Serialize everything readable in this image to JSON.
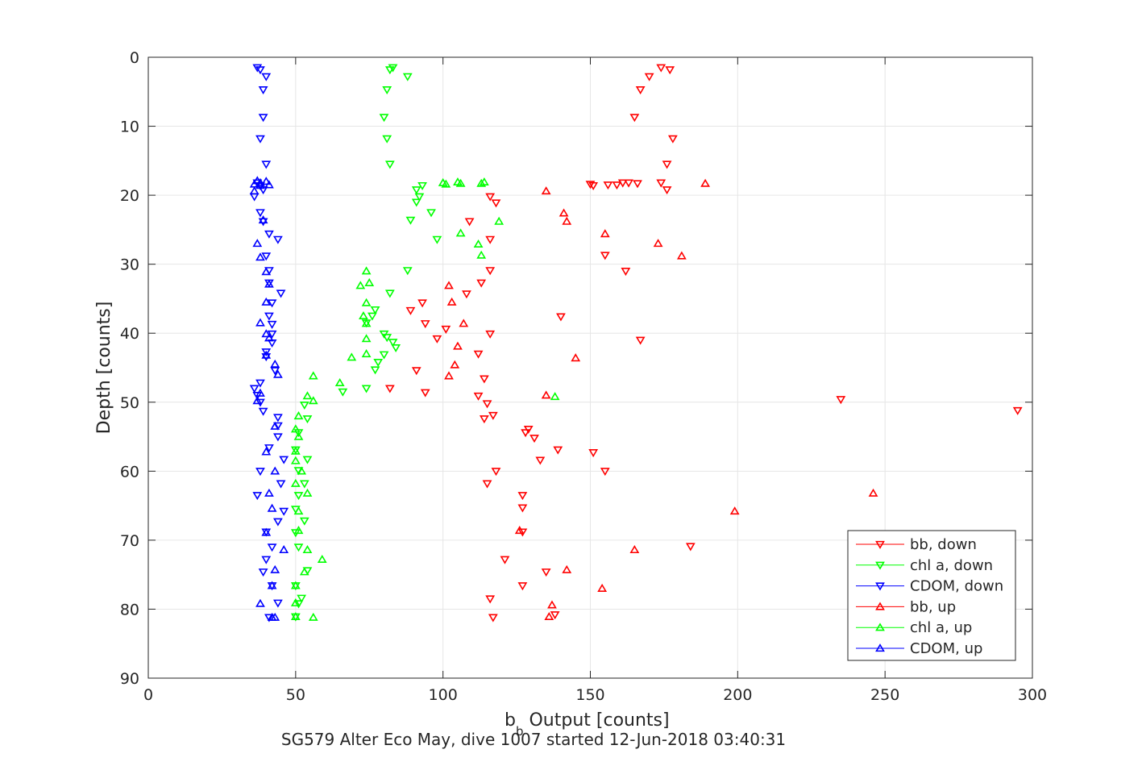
{
  "chart_data": {
    "type": "scatter",
    "xlabel": "b",
    "xlabel_sub": "b",
    "xlabel_rest": " Output [counts]",
    "ylabel": "Depth [counts]",
    "caption": "SG579 Alter Eco May, dive 1007 started 12-Jun-2018 03:40:31",
    "xlim": [
      0,
      300
    ],
    "ylim": [
      0,
      90
    ],
    "y_reversed": true,
    "grid": true,
    "legend_position": "bottom-right",
    "x_ticks": [
      "0",
      "50",
      "100",
      "150",
      "200",
      "250",
      "300"
    ],
    "y_ticks": [
      "0",
      "10",
      "20",
      "30",
      "40",
      "50",
      "60",
      "70",
      "80",
      "90"
    ],
    "series": [
      {
        "name": "bb, down",
        "color": "#ff0000",
        "marker": "triangle-down",
        "points": [
          [
            174,
            1.5
          ],
          [
            177,
            1.8
          ],
          [
            170,
            2.8
          ],
          [
            167,
            4.7
          ],
          [
            165,
            8.7
          ],
          [
            178,
            11.8
          ],
          [
            176,
            15.5
          ],
          [
            174,
            18.2
          ],
          [
            176,
            19.2
          ],
          [
            150,
            18.4
          ],
          [
            151,
            18.6
          ],
          [
            156,
            18.5
          ],
          [
            159,
            18.5
          ],
          [
            161,
            18.2
          ],
          [
            163,
            18.2
          ],
          [
            166,
            18.3
          ],
          [
            116,
            20.2
          ],
          [
            118,
            21.1
          ],
          [
            109,
            23.8
          ],
          [
            116,
            26.4
          ],
          [
            155,
            28.7
          ],
          [
            162,
            31
          ],
          [
            116,
            30.9
          ],
          [
            113,
            32.7
          ],
          [
            108,
            34.3
          ],
          [
            89,
            36.7
          ],
          [
            93,
            35.6
          ],
          [
            140,
            37.6
          ],
          [
            94,
            38.6
          ],
          [
            101,
            39.4
          ],
          [
            116,
            40.1
          ],
          [
            167,
            41
          ],
          [
            98,
            40.8
          ],
          [
            112,
            43
          ],
          [
            91,
            45.4
          ],
          [
            114,
            46.6
          ],
          [
            82,
            48
          ],
          [
            94,
            48.6
          ],
          [
            112,
            49.1
          ],
          [
            115,
            50.2
          ],
          [
            235,
            49.6
          ],
          [
            295,
            51.2
          ],
          [
            114,
            52.4
          ],
          [
            117,
            51.9
          ],
          [
            129,
            53.9
          ],
          [
            128,
            54.4
          ],
          [
            131,
            55.2
          ],
          [
            139,
            56.9
          ],
          [
            133,
            58.4
          ],
          [
            118,
            60
          ],
          [
            115,
            61.8
          ],
          [
            155,
            60
          ],
          [
            151,
            57.3
          ],
          [
            127,
            63.5
          ],
          [
            127,
            65.3
          ],
          [
            127,
            68.8
          ],
          [
            184,
            70.9
          ],
          [
            121,
            72.8
          ],
          [
            135,
            74.6
          ],
          [
            127,
            76.6
          ],
          [
            116,
            78.5
          ],
          [
            117,
            81.2
          ],
          [
            138,
            80.8
          ]
        ]
      },
      {
        "name": "chl a, down",
        "color": "#00ff00",
        "marker": "triangle-down",
        "points": [
          [
            83,
            1.5
          ],
          [
            82,
            1.8
          ],
          [
            88,
            2.8
          ],
          [
            81,
            4.7
          ],
          [
            80,
            8.7
          ],
          [
            81,
            11.8
          ],
          [
            82,
            15.5
          ],
          [
            93,
            18.6
          ],
          [
            91,
            19.2
          ],
          [
            92,
            20.2
          ],
          [
            91,
            21
          ],
          [
            96,
            22.5
          ],
          [
            89,
            23.6
          ],
          [
            98,
            26.4
          ],
          [
            88,
            30.9
          ],
          [
            82,
            34.2
          ],
          [
            77,
            36.6
          ],
          [
            76,
            37.5
          ],
          [
            74,
            38.5
          ],
          [
            80,
            40.1
          ],
          [
            81,
            40.6
          ],
          [
            83,
            41.3
          ],
          [
            84,
            42.1
          ],
          [
            80,
            43.1
          ],
          [
            78,
            44.2
          ],
          [
            77,
            45.3
          ],
          [
            74,
            48
          ],
          [
            66,
            48.5
          ],
          [
            53,
            50.4
          ],
          [
            54,
            52.4
          ],
          [
            51,
            54.4
          ],
          [
            50,
            56.9
          ],
          [
            54,
            58.3
          ],
          [
            51,
            59.9
          ],
          [
            53,
            61.8
          ],
          [
            51,
            63.5
          ],
          [
            50,
            65.5
          ],
          [
            53,
            67.2
          ],
          [
            50,
            68.9
          ],
          [
            51,
            71
          ],
          [
            54,
            74.4
          ],
          [
            50,
            76.6
          ],
          [
            52,
            78.4
          ],
          [
            51,
            79.2
          ],
          [
            50,
            81.1
          ]
        ]
      },
      {
        "name": "CDOM, down",
        "color": "#0000ff",
        "marker": "triangle-down",
        "points": [
          [
            37,
            1.5
          ],
          [
            38,
            1.8
          ],
          [
            40,
            2.8
          ],
          [
            39,
            4.7
          ],
          [
            39,
            8.7
          ],
          [
            38,
            11.8
          ],
          [
            40,
            15.5
          ],
          [
            37,
            18.2
          ],
          [
            38,
            18.6
          ],
          [
            39,
            19.2
          ],
          [
            36,
            20.2
          ],
          [
            38,
            22.5
          ],
          [
            39,
            23.8
          ],
          [
            41,
            25.6
          ],
          [
            44,
            26.4
          ],
          [
            40,
            28.8
          ],
          [
            41,
            30.9
          ],
          [
            41,
            32.7
          ],
          [
            45,
            34.2
          ],
          [
            42,
            35.6
          ],
          [
            41,
            37.5
          ],
          [
            42,
            38.7
          ],
          [
            42,
            40.1
          ],
          [
            42,
            41.4
          ],
          [
            40,
            42.7
          ],
          [
            40,
            43.4
          ],
          [
            43,
            45.4
          ],
          [
            38,
            47.2
          ],
          [
            36,
            48
          ],
          [
            37,
            49
          ],
          [
            38,
            50
          ],
          [
            39,
            51.3
          ],
          [
            44,
            52.2
          ],
          [
            44,
            53.4
          ],
          [
            44,
            55
          ],
          [
            41,
            56.6
          ],
          [
            46,
            58.3
          ],
          [
            38,
            60
          ],
          [
            45,
            61.8
          ],
          [
            37,
            63.5
          ],
          [
            46,
            65.8
          ],
          [
            44,
            67.3
          ],
          [
            40,
            68.8
          ],
          [
            42,
            71
          ],
          [
            40,
            72.8
          ],
          [
            39,
            74.6
          ],
          [
            42,
            76.6
          ],
          [
            44,
            79.1
          ],
          [
            41,
            81.2
          ]
        ]
      },
      {
        "name": "bb, up",
        "color": "#ff0000",
        "marker": "triangle-up",
        "points": [
          [
            189,
            18.3
          ],
          [
            135,
            19.4
          ],
          [
            141,
            22.6
          ],
          [
            142,
            23.8
          ],
          [
            155,
            25.6
          ],
          [
            173,
            27
          ],
          [
            181,
            28.8
          ],
          [
            102,
            33.1
          ],
          [
            103,
            35.5
          ],
          [
            107,
            38.6
          ],
          [
            105,
            41.9
          ],
          [
            145,
            43.6
          ],
          [
            104,
            44.6
          ],
          [
            102,
            46.2
          ],
          [
            135,
            49
          ],
          [
            165,
            71.4
          ],
          [
            142,
            74.3
          ],
          [
            154,
            77
          ],
          [
            137,
            79.4
          ],
          [
            246,
            63.2
          ],
          [
            199,
            65.8
          ],
          [
            126,
            68.6
          ],
          [
            136,
            81.1
          ]
        ]
      },
      {
        "name": "chl a, up",
        "color": "#00ff00",
        "marker": "triangle-up",
        "points": [
          [
            101,
            18.4
          ],
          [
            100,
            18.2
          ],
          [
            105,
            18.1
          ],
          [
            106,
            18.3
          ],
          [
            114,
            18.1
          ],
          [
            113,
            18.3
          ],
          [
            119,
            23.8
          ],
          [
            106,
            25.5
          ],
          [
            112,
            27.1
          ],
          [
            113,
            28.7
          ],
          [
            74,
            31
          ],
          [
            75,
            32.7
          ],
          [
            72,
            33.1
          ],
          [
            74,
            35.6
          ],
          [
            73,
            37.5
          ],
          [
            74,
            38.6
          ],
          [
            74,
            40.8
          ],
          [
            74,
            43
          ],
          [
            69,
            43.5
          ],
          [
            65,
            47.2
          ],
          [
            56,
            46.2
          ],
          [
            138,
            49.2
          ],
          [
            54,
            49.1
          ],
          [
            56,
            49.8
          ],
          [
            51,
            52
          ],
          [
            50,
            53.9
          ],
          [
            51,
            55
          ],
          [
            50,
            57.1
          ],
          [
            50,
            58.5
          ],
          [
            52,
            60
          ],
          [
            50,
            61.8
          ],
          [
            54,
            63.2
          ],
          [
            51,
            65.8
          ],
          [
            51,
            68.6
          ],
          [
            54,
            71.4
          ],
          [
            59,
            72.8
          ],
          [
            53,
            74.6
          ],
          [
            50,
            76.6
          ],
          [
            50,
            79.1
          ],
          [
            56,
            81.2
          ],
          [
            50,
            81.1
          ]
        ]
      },
      {
        "name": "CDOM, up",
        "color": "#0000ff",
        "marker": "triangle-up",
        "points": [
          [
            37,
            17.9
          ],
          [
            38,
            18.2
          ],
          [
            36,
            18.4
          ],
          [
            38,
            18.6
          ],
          [
            40,
            18
          ],
          [
            41,
            18.5
          ],
          [
            36,
            19.4
          ],
          [
            39,
            23.6
          ],
          [
            37,
            27
          ],
          [
            38,
            29
          ],
          [
            40,
            31.1
          ],
          [
            41,
            32.9
          ],
          [
            40,
            35.5
          ],
          [
            38,
            38.5
          ],
          [
            40,
            40.1
          ],
          [
            41,
            40.7
          ],
          [
            40,
            43.2
          ],
          [
            43,
            44.5
          ],
          [
            44,
            46
          ],
          [
            38,
            48.7
          ],
          [
            37,
            49.8
          ],
          [
            43,
            53.5
          ],
          [
            40,
            57.2
          ],
          [
            43,
            60
          ],
          [
            41,
            63.2
          ],
          [
            42,
            65.4
          ],
          [
            40,
            68.9
          ],
          [
            46,
            71.4
          ],
          [
            43,
            74.3
          ],
          [
            42,
            76.6
          ],
          [
            38,
            79.2
          ],
          [
            43,
            81.2
          ],
          [
            42,
            81.2
          ]
        ]
      }
    ]
  }
}
